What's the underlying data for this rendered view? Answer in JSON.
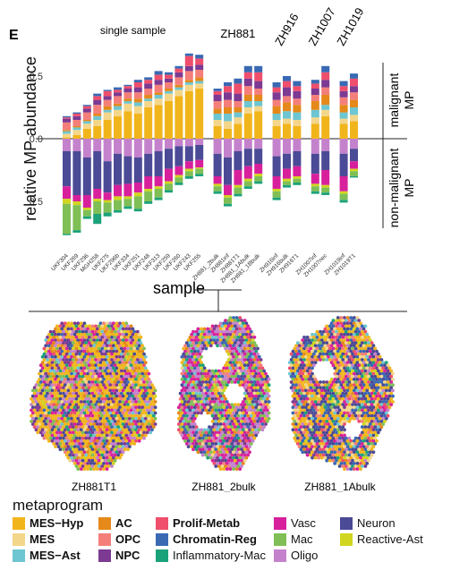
{
  "panel_label": "E",
  "chart_data": {
    "type": "bar",
    "subtype": "diverging-stacked",
    "ylabel": "relative MP abundance",
    "xlabel": "sample",
    "yticks": [
      "0.5",
      "0.0",
      "0.5"
    ],
    "ylim_up": [
      0,
      0.75
    ],
    "ylim_down": [
      0,
      0.85
    ],
    "right_labels": {
      "up": "malignant\nMP",
      "down": "non-malignant\nMP"
    },
    "group_headers": [
      {
        "label": "single sample",
        "rotated": false
      },
      {
        "label": "ZH881",
        "rotated": false
      },
      {
        "label": "ZH916",
        "rotated": true
      },
      {
        "label": "ZH1007",
        "rotated": true
      },
      {
        "label": "ZH1019",
        "rotated": true
      }
    ],
    "malignant_order": [
      "MES-Hyp",
      "MES",
      "MES-Ast",
      "AC",
      "OPC",
      "NPC",
      "Prolif-Metab",
      "Chromatin-Reg"
    ],
    "nonmalignant_order": [
      "Oligo",
      "Neuron",
      "Vasc",
      "Reactive-Ast",
      "Mac",
      "Inflammatory-Mac"
    ],
    "samples": [
      {
        "name": "UKF304",
        "group": 0,
        "up": [
          0.01,
          0.03,
          0.02,
          0.01,
          0.06,
          0.03,
          0.01,
          0.01
        ],
        "down": [
          0.1,
          0.28,
          0.1,
          0.04,
          0.24,
          0.01
        ]
      },
      {
        "name": "UKF269",
        "group": 0,
        "up": [
          0.03,
          0.04,
          0.02,
          0.01,
          0.05,
          0.03,
          0.02,
          0.01
        ],
        "down": [
          0.1,
          0.35,
          0.05,
          0.03,
          0.2,
          0.02
        ]
      },
      {
        "name": "UKF296",
        "group": 0,
        "up": [
          0.08,
          0.04,
          0.02,
          0.01,
          0.06,
          0.03,
          0.02,
          0.01
        ],
        "down": [
          0.15,
          0.3,
          0.1,
          0.02,
          0.05,
          0.02
        ]
      },
      {
        "name": "MGH258",
        "group": 0,
        "up": [
          0.1,
          0.05,
          0.03,
          0.02,
          0.07,
          0.04,
          0.03,
          0.02
        ],
        "down": [
          0.1,
          0.3,
          0.08,
          0.02,
          0.1,
          0.08
        ]
      },
      {
        "name": "UKF275",
        "group": 0,
        "up": [
          0.15,
          0.06,
          0.02,
          0.03,
          0.05,
          0.03,
          0.04,
          0.01
        ],
        "down": [
          0.18,
          0.25,
          0.06,
          0.02,
          0.08,
          0.03
        ]
      },
      {
        "name": "UKF296b",
        "group": 0,
        "up": [
          0.18,
          0.05,
          0.03,
          0.02,
          0.06,
          0.03,
          0.02,
          0.02
        ],
        "down": [
          0.12,
          0.25,
          0.09,
          0.03,
          0.08,
          0.02
        ]
      },
      {
        "name": "UKF334",
        "group": 0,
        "up": [
          0.22,
          0.06,
          0.02,
          0.02,
          0.05,
          0.03,
          0.02,
          0.01
        ],
        "down": [
          0.14,
          0.22,
          0.1,
          0.02,
          0.06,
          0.02
        ]
      },
      {
        "name": "UKF251",
        "group": 0,
        "up": [
          0.2,
          0.06,
          0.03,
          0.03,
          0.05,
          0.04,
          0.04,
          0.02
        ],
        "down": [
          0.15,
          0.2,
          0.08,
          0.03,
          0.1,
          0.02
        ]
      },
      {
        "name": "UKF248",
        "group": 0,
        "up": [
          0.25,
          0.05,
          0.02,
          0.03,
          0.05,
          0.04,
          0.03,
          0.02
        ],
        "down": [
          0.12,
          0.18,
          0.1,
          0.02,
          0.08,
          0.02
        ]
      },
      {
        "name": "UKF313",
        "group": 0,
        "up": [
          0.27,
          0.05,
          0.03,
          0.02,
          0.06,
          0.04,
          0.04,
          0.03
        ],
        "down": [
          0.1,
          0.2,
          0.08,
          0.02,
          0.07,
          0.02
        ]
      },
      {
        "name": "UKF259",
        "group": 0,
        "up": [
          0.3,
          0.06,
          0.02,
          0.02,
          0.05,
          0.03,
          0.03,
          0.02
        ],
        "down": [
          0.08,
          0.16,
          0.1,
          0.02,
          0.05,
          0.02
        ]
      },
      {
        "name": "UKF260",
        "group": 0,
        "up": [
          0.34,
          0.05,
          0.02,
          0.02,
          0.06,
          0.04,
          0.03,
          0.02
        ],
        "down": [
          0.06,
          0.16,
          0.07,
          0.02,
          0.04,
          0.02
        ]
      },
      {
        "name": "UKF243",
        "group": 0,
        "up": [
          0.38,
          0.05,
          0.02,
          0.02,
          0.07,
          0.04,
          0.08,
          0.02
        ],
        "down": [
          0.06,
          0.12,
          0.06,
          0.02,
          0.04,
          0.02
        ]
      },
      {
        "name": "UKF255",
        "group": 0,
        "up": [
          0.4,
          0.04,
          0.02,
          0.03,
          0.06,
          0.04,
          0.05,
          0.03
        ],
        "down": [
          0.05,
          0.12,
          0.06,
          0.01,
          0.04,
          0.02
        ]
      },
      {
        "name": "ZH881_2bulk",
        "group": 1,
        "up": [
          0.1,
          0.05,
          0.05,
          0.04,
          0.06,
          0.05,
          0.03,
          0.02
        ],
        "down": [
          0.12,
          0.18,
          0.06,
          0.02,
          0.04,
          0.02
        ]
      },
      {
        "name": "ZH881inf",
        "group": 1,
        "up": [
          0.08,
          0.06,
          0.06,
          0.05,
          0.06,
          0.06,
          0.05,
          0.03
        ],
        "down": [
          0.15,
          0.22,
          0.08,
          0.02,
          0.05,
          0.02
        ]
      },
      {
        "name": "ZH881T1",
        "group": 1,
        "up": [
          0.12,
          0.05,
          0.04,
          0.04,
          0.05,
          0.06,
          0.08,
          0.04
        ],
        "down": [
          0.1,
          0.15,
          0.12,
          0.02,
          0.05,
          0.02
        ]
      },
      {
        "name": "ZH881_1Abulk",
        "group": 1,
        "up": [
          0.2,
          0.05,
          0.05,
          0.05,
          0.07,
          0.06,
          0.05,
          0.05
        ],
        "down": [
          0.08,
          0.14,
          0.1,
          0.02,
          0.04,
          0.02
        ]
      },
      {
        "name": "ZH881_1Bbulk",
        "group": 1,
        "up": [
          0.22,
          0.04,
          0.04,
          0.05,
          0.05,
          0.06,
          0.07,
          0.05
        ],
        "down": [
          0.08,
          0.12,
          0.08,
          0.02,
          0.04,
          0.02
        ]
      },
      {
        "name": "ZH916inf",
        "group": 2,
        "up": [
          0.1,
          0.05,
          0.05,
          0.06,
          0.05,
          0.06,
          0.04,
          0.04
        ],
        "down": [
          0.14,
          0.16,
          0.1,
          0.02,
          0.05,
          0.02
        ]
      },
      {
        "name": "ZH916bulk",
        "group": 2,
        "up": [
          0.12,
          0.04,
          0.06,
          0.07,
          0.05,
          0.07,
          0.05,
          0.04
        ],
        "down": [
          0.12,
          0.12,
          0.08,
          0.02,
          0.03,
          0.02
        ]
      },
      {
        "name": "ZH916T1",
        "group": 2,
        "up": [
          0.1,
          0.05,
          0.06,
          0.06,
          0.05,
          0.06,
          0.04,
          0.04
        ],
        "down": [
          0.1,
          0.12,
          0.08,
          0.02,
          0.03,
          0.02
        ]
      },
      {
        "name": "ZH1007inf",
        "group": 3,
        "up": [
          0.12,
          0.05,
          0.06,
          0.07,
          0.05,
          0.05,
          0.04,
          0.03
        ],
        "down": [
          0.12,
          0.16,
          0.08,
          0.02,
          0.04,
          0.02
        ]
      },
      {
        "name": "ZH1007nec",
        "group": 3,
        "up": [
          0.18,
          0.05,
          0.04,
          0.08,
          0.06,
          0.06,
          0.06,
          0.05
        ],
        "down": [
          0.1,
          0.15,
          0.12,
          0.02,
          0.04,
          0.02
        ]
      },
      {
        "name": "ZH1019inf",
        "group": 4,
        "up": [
          0.12,
          0.04,
          0.05,
          0.06,
          0.06,
          0.05,
          0.04,
          0.04
        ],
        "down": [
          0.12,
          0.18,
          0.12,
          0.02,
          0.05,
          0.02
        ]
      },
      {
        "name": "ZH1019T1",
        "group": 4,
        "up": [
          0.14,
          0.05,
          0.06,
          0.06,
          0.06,
          0.05,
          0.06,
          0.04
        ],
        "down": [
          0.08,
          0.1,
          0.06,
          0.02,
          0.04,
          0.01
        ]
      }
    ],
    "spatial_maps": [
      {
        "label": "ZH881T1"
      },
      {
        "label": "ZH881_2bulk"
      },
      {
        "label": "ZH881_1Abulk"
      }
    ]
  },
  "legend": {
    "title": "metaprogram",
    "items": [
      {
        "label": "MES−Hyp",
        "key": "MES-Hyp",
        "bold": true,
        "color": "#F1B51C"
      },
      {
        "label": "AC",
        "key": "AC",
        "bold": true,
        "color": "#E4891A"
      },
      {
        "label": "Prolif-Metab",
        "key": "Prolif-Metab",
        "bold": true,
        "color": "#EF4E6C"
      },
      {
        "label": "Vasc",
        "key": "Vasc",
        "bold": false,
        "color": "#D8209C"
      },
      {
        "label": "Neuron",
        "key": "Neuron",
        "bold": false,
        "color": "#4A4A96"
      },
      {
        "label": "MES",
        "key": "MES",
        "bold": true,
        "color": "#F4D68A"
      },
      {
        "label": "OPC",
        "key": "OPC",
        "bold": true,
        "color": "#F47F7A"
      },
      {
        "label": "Chromatin-Reg",
        "key": "Chromatin-Reg",
        "bold": true,
        "color": "#3969B3"
      },
      {
        "label": "Mac",
        "key": "Mac",
        "bold": false,
        "color": "#7FBF56"
      },
      {
        "label": "Reactive-Ast",
        "key": "Reactive-Ast",
        "bold": false,
        "color": "#D0D61F"
      },
      {
        "label": "MES−Ast",
        "key": "MES-Ast",
        "bold": true,
        "color": "#6DC6D1"
      },
      {
        "label": "NPC",
        "key": "NPC",
        "bold": true,
        "color": "#7C3A93"
      },
      {
        "label": "Inflammatory-Mac",
        "key": "Inflammatory-Mac",
        "bold": false,
        "color": "#1BA27A"
      },
      {
        "label": "Oligo",
        "key": "Oligo",
        "bold": false,
        "color": "#C482CC"
      },
      {
        "label": "",
        "key": "",
        "bold": false,
        "color": ""
      }
    ]
  }
}
